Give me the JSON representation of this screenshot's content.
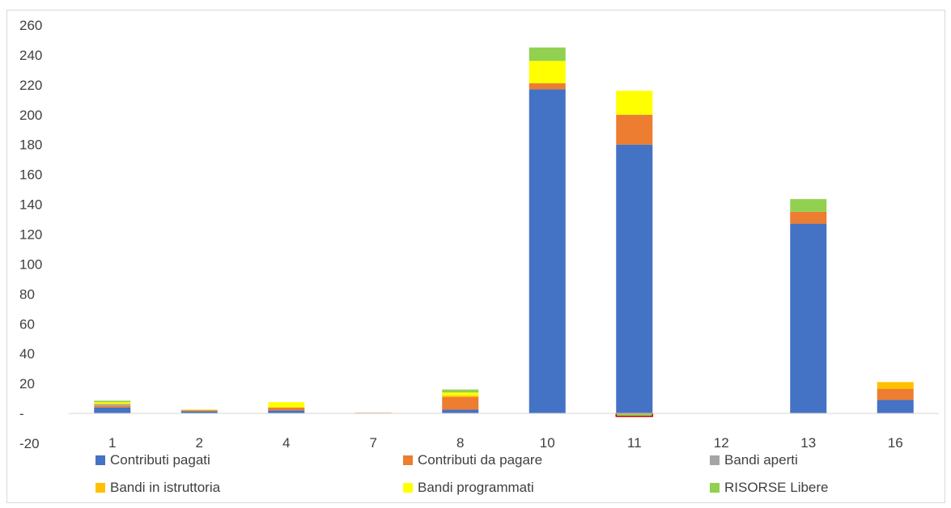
{
  "chart_data": {
    "type": "bar",
    "stacked": true,
    "categories": [
      "1",
      "2",
      "4",
      "7",
      "8",
      "10",
      "11",
      "12",
      "13",
      "16"
    ],
    "series": [
      {
        "name": "Contributi pagati",
        "color": "#4472C4",
        "values": [
          4,
          1.5,
          2,
          0,
          2.5,
          217,
          180,
          0,
          127,
          9
        ]
      },
      {
        "name": "Contributi da pagare",
        "color": "#ED7D31",
        "values": [
          1,
          0.5,
          2,
          0.5,
          8.5,
          4,
          20,
          0,
          8,
          7.5
        ]
      },
      {
        "name": "Bandi aperti",
        "color": "#A5A5A5",
        "values": [
          1,
          0,
          0,
          0,
          0,
          0,
          0,
          0,
          0,
          0
        ]
      },
      {
        "name": "Bandi in istruttoria",
        "color": "#FFC000",
        "values": [
          0.5,
          0.5,
          0,
          0,
          1,
          0,
          0,
          0,
          0,
          4.5
        ]
      },
      {
        "name": "Bandi programmati",
        "color": "#FFFF00",
        "values": [
          1,
          0,
          3.5,
          0,
          2,
          15,
          16,
          0,
          0,
          0
        ]
      },
      {
        "name": "RISORSE Libere",
        "color": "#92D050",
        "values": [
          1,
          0,
          0,
          0,
          2,
          9,
          0,
          0,
          8.5,
          0
        ]
      }
    ],
    "negative_annotation": {
      "category": "11",
      "value": -2
    },
    "ylim": [
      -20,
      260
    ],
    "yticks": [
      -20,
      0,
      20,
      40,
      60,
      80,
      100,
      120,
      140,
      160,
      180,
      200,
      220,
      240,
      260
    ],
    "ytick_labels": [
      "-20",
      "-",
      "20",
      "40",
      "60",
      "80",
      "100",
      "120",
      "140",
      "160",
      "180",
      "200",
      "220",
      "240",
      "260"
    ],
    "grid": false,
    "legend_position": "bottom",
    "title": "",
    "xlabel": "",
    "ylabel": ""
  }
}
